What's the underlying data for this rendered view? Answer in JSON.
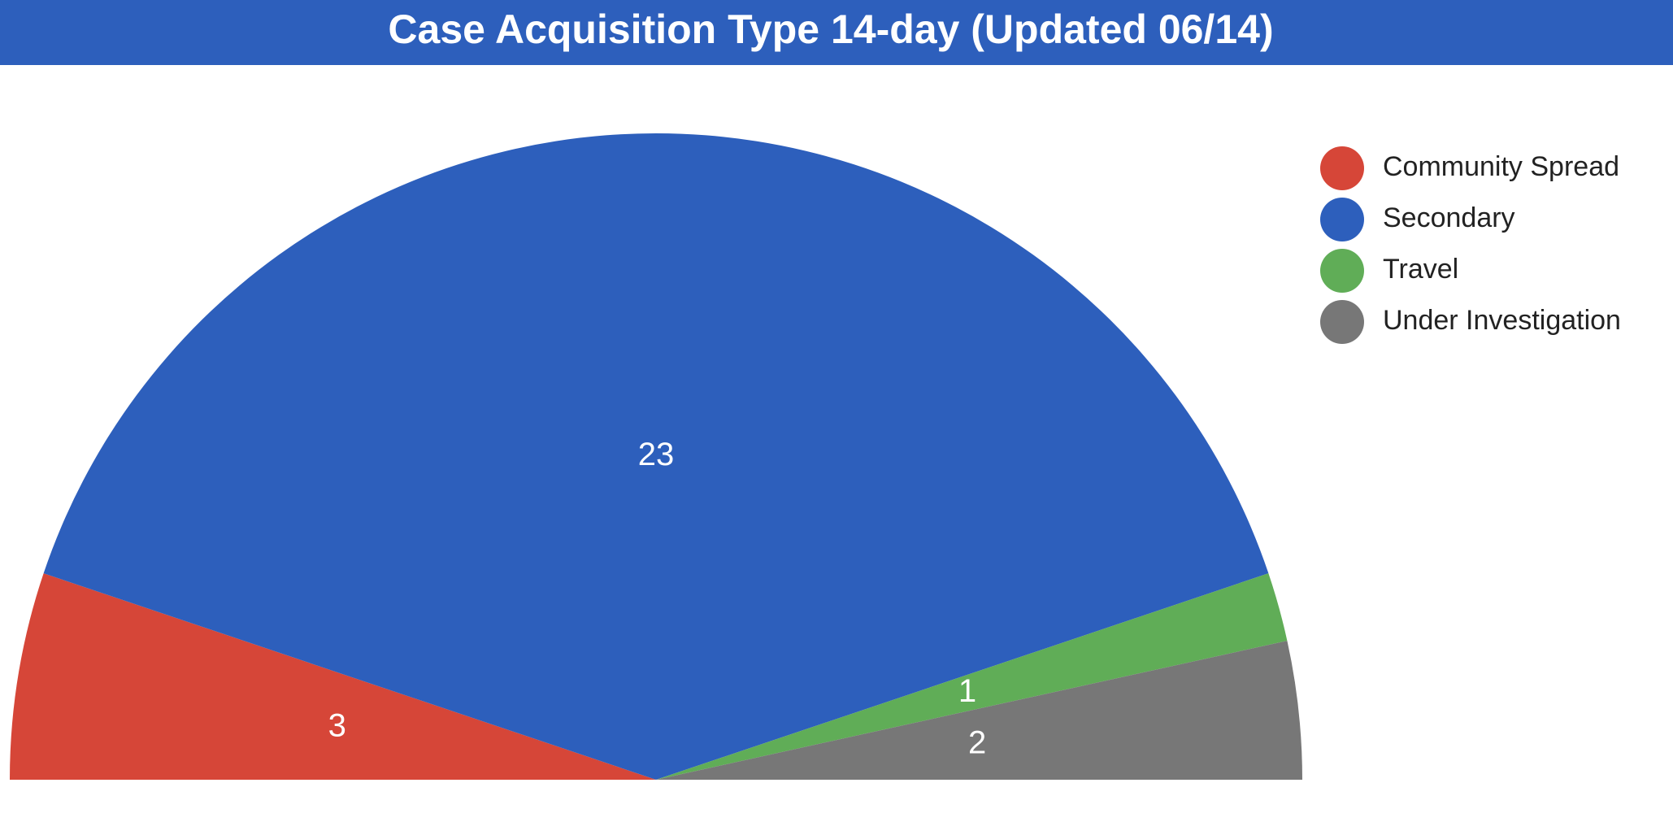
{
  "chart_data": {
    "type": "pie",
    "half": true,
    "title": "Case Acquisition Type 14-day (Updated 06/14)",
    "categories": [
      "Community Spread",
      "Secondary",
      "Travel",
      "Under Investigation"
    ],
    "values": [
      3,
      23,
      1,
      2
    ],
    "colors": [
      "#d64638",
      "#2d5fbc",
      "#60ad57",
      "#777777"
    ],
    "legend": "top-right"
  }
}
